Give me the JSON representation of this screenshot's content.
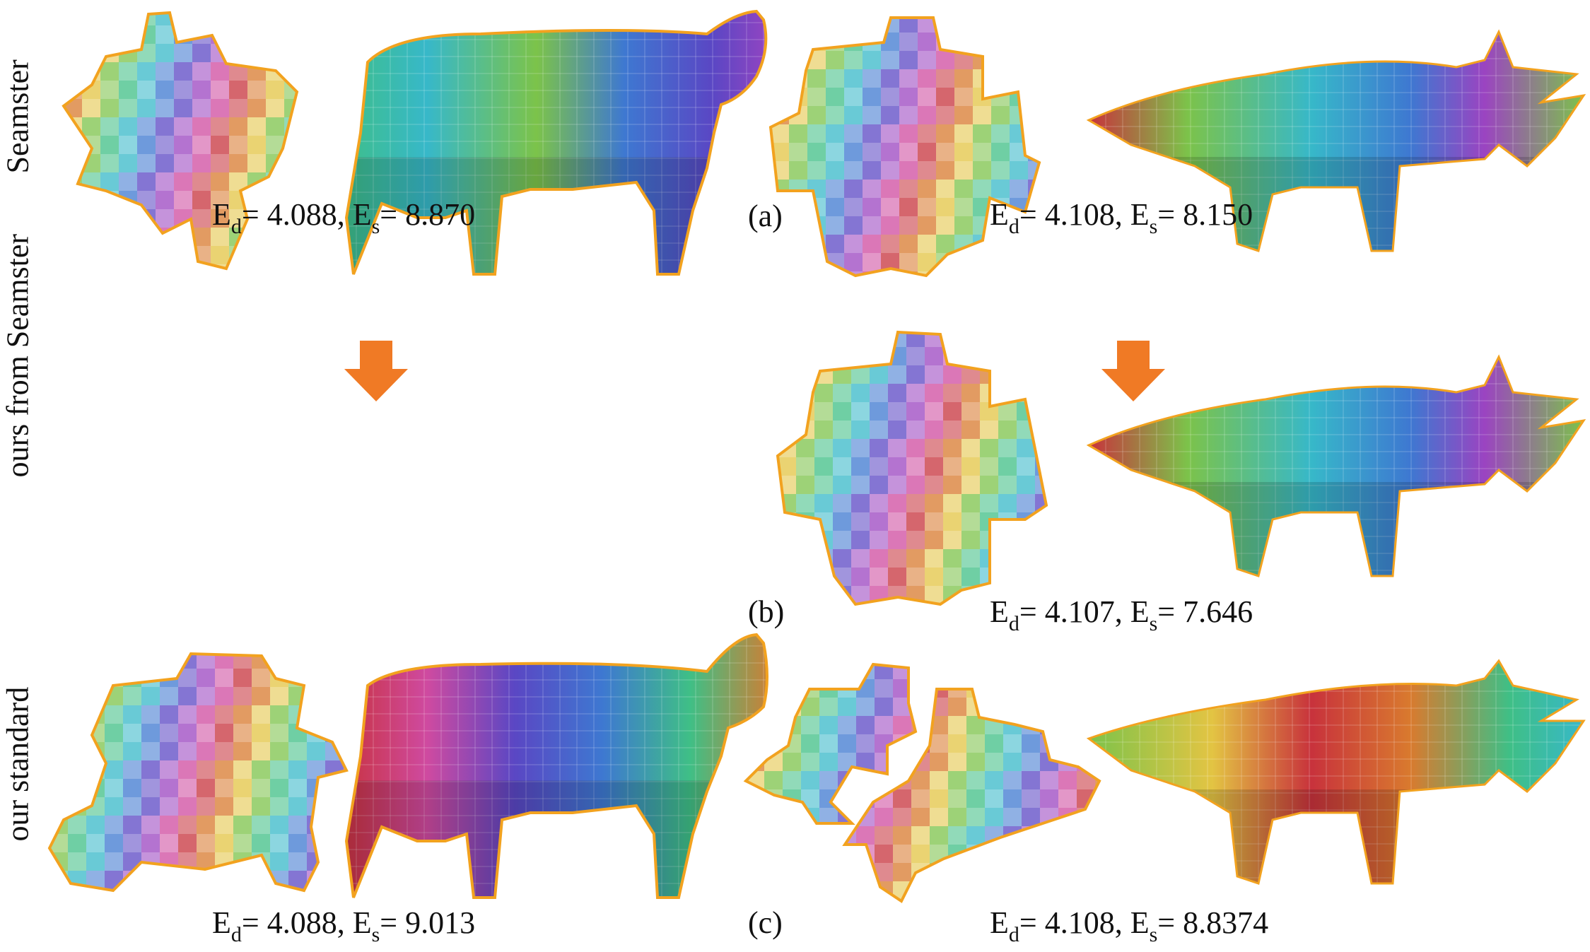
{
  "colors": {
    "seam": "#f2a21f",
    "arrow": "#f07a25",
    "palette": [
      "#c8323c",
      "#d97a2e",
      "#e3c443",
      "#7cc34a",
      "#3fbf86",
      "#37b8c9",
      "#3e78d1",
      "#5a47c4",
      "#9b44c1",
      "#cf4aa0"
    ]
  },
  "row_labels": {
    "row1": "Seamster",
    "row2": "ours from Seamster",
    "row3": "our standard"
  },
  "panel_tags": {
    "a": "(a)",
    "b": "(b)",
    "c": "(c)"
  },
  "captions": {
    "a_cow": {
      "ed": "4.088",
      "es": "8.870"
    },
    "a_triceratops": {
      "ed": "4.108",
      "es": "8.150"
    },
    "b_triceratops": {
      "ed": "4.107",
      "es": "7.646"
    },
    "c_cow": {
      "ed": "4.088",
      "es": "9.013"
    },
    "c_triceratops": {
      "ed": "4.108",
      "es": "8.8374"
    }
  },
  "symbols": {
    "E": "E",
    "d": "d",
    "s": "s",
    "eq": "= ",
    "sep": ", "
  },
  "icons": {
    "arrow": "down-arrow-icon"
  }
}
